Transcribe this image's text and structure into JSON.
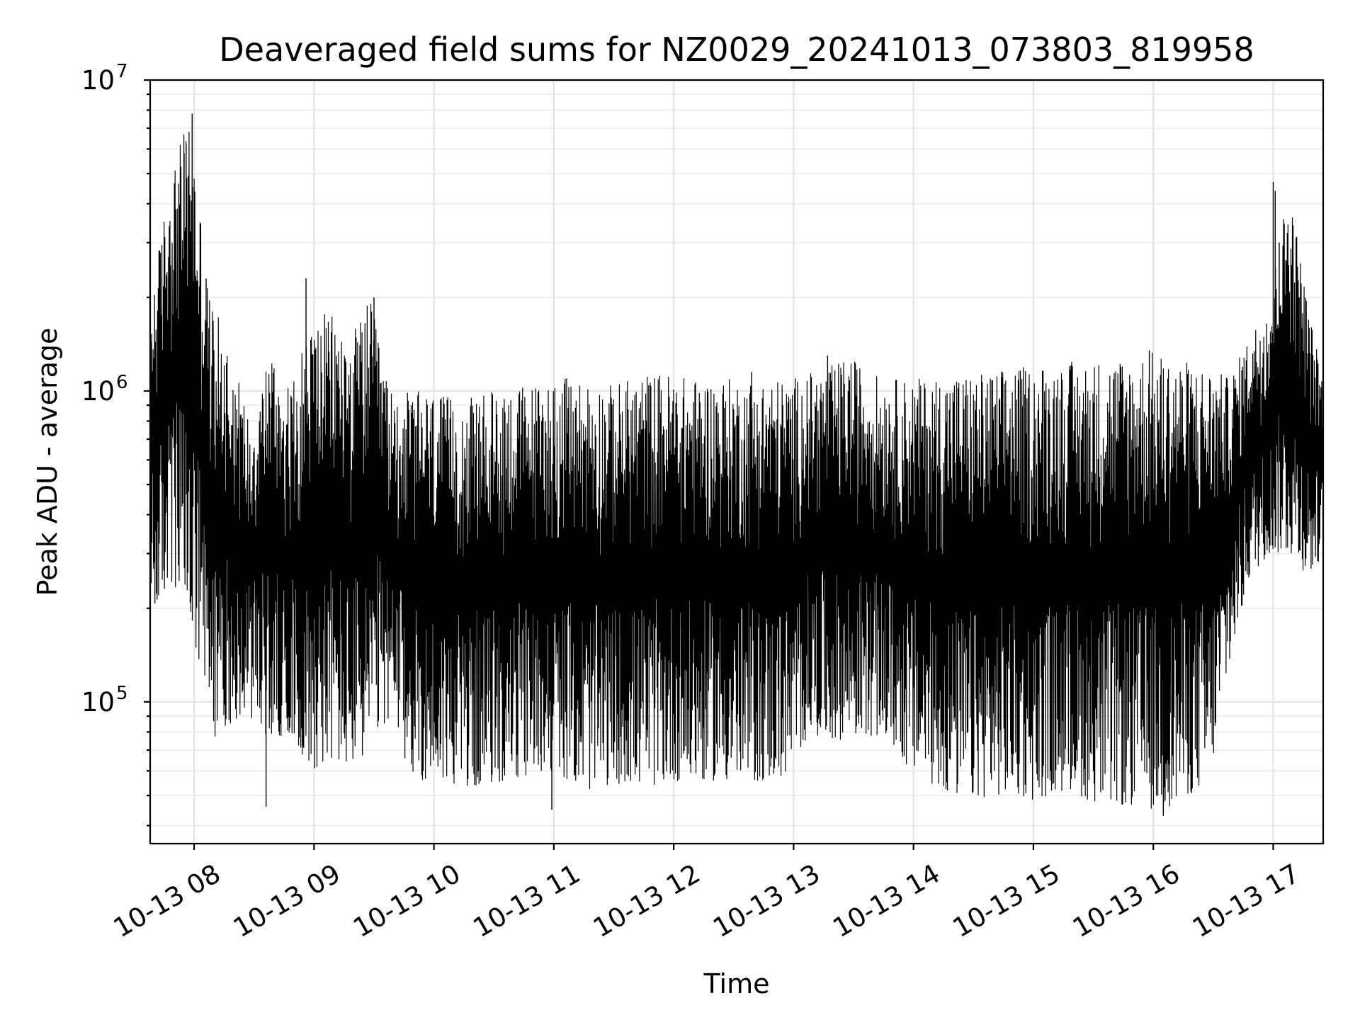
{
  "chart_data": {
    "type": "line",
    "title": "Deaveraged field sums for NZ0029_20241013_073803_819958",
    "xlabel": "Time",
    "ylabel": "Peak ADU - average",
    "yscale": "log",
    "ylim": [
      35000,
      10000000
    ],
    "xlim": [
      "2024-10-13 07:38",
      "2024-10-13 17:25"
    ],
    "grid": true,
    "line_color": "#000000",
    "x_tick_labels": [
      "10-13 08",
      "10-13 09",
      "10-13 10",
      "10-13 11",
      "10-13 12",
      "10-13 13",
      "10-13 14",
      "10-13 15",
      "10-13 16",
      "10-13 17"
    ],
    "x_tick_times": [
      "2024-10-13 08:00",
      "2024-10-13 09:00",
      "2024-10-13 10:00",
      "2024-10-13 11:00",
      "2024-10-13 12:00",
      "2024-10-13 13:00",
      "2024-10-13 14:00",
      "2024-10-13 15:00",
      "2024-10-13 16:00",
      "2024-10-13 17:00"
    ],
    "y_ticks": [
      {
        "value": 100000,
        "base": "10",
        "exp": "5"
      },
      {
        "value": 1000000,
        "base": "10",
        "exp": "6"
      },
      {
        "value": 10000000,
        "base": "10",
        "exp": "7"
      }
    ],
    "series": [
      {
        "envelope": {
          "time": [
            "2024-10-13 07:38",
            "2024-10-13 07:48",
            "2024-10-13 07:58",
            "2024-10-13 08:08",
            "2024-10-13 08:18",
            "2024-10-13 08:28",
            "2024-10-13 08:38",
            "2024-10-13 08:48",
            "2024-10-13 08:58",
            "2024-10-13 09:08",
            "2024-10-13 09:18",
            "2024-10-13 09:28",
            "2024-10-13 09:38",
            "2024-10-13 09:48",
            "2024-10-13 09:58",
            "2024-10-13 10:08",
            "2024-10-13 10:18",
            "2024-10-13 10:28",
            "2024-10-13 10:38",
            "2024-10-13 10:48",
            "2024-10-13 10:58",
            "2024-10-13 11:08",
            "2024-10-13 11:18",
            "2024-10-13 11:28",
            "2024-10-13 11:38",
            "2024-10-13 11:48",
            "2024-10-13 11:58",
            "2024-10-13 12:08",
            "2024-10-13 12:18",
            "2024-10-13 12:28",
            "2024-10-13 12:38",
            "2024-10-13 12:48",
            "2024-10-13 12:58",
            "2024-10-13 13:08",
            "2024-10-13 13:18",
            "2024-10-13 13:28",
            "2024-10-13 13:38",
            "2024-10-13 13:48",
            "2024-10-13 13:58",
            "2024-10-13 14:08",
            "2024-10-13 14:18",
            "2024-10-13 14:28",
            "2024-10-13 14:38",
            "2024-10-13 14:48",
            "2024-10-13 14:58",
            "2024-10-13 15:08",
            "2024-10-13 15:18",
            "2024-10-13 15:28",
            "2024-10-13 15:38",
            "2024-10-13 15:48",
            "2024-10-13 15:58",
            "2024-10-13 16:08",
            "2024-10-13 16:18",
            "2024-10-13 16:28",
            "2024-10-13 16:38",
            "2024-10-13 16:48",
            "2024-10-13 16:58",
            "2024-10-13 17:08",
            "2024-10-13 17:18",
            "2024-10-13 17:25"
          ],
          "low": [
            180000,
            240000,
            170000,
            75000,
            85000,
            90000,
            75000,
            80000,
            60000,
            65000,
            60000,
            70000,
            90000,
            58000,
            55000,
            55000,
            53000,
            55000,
            55000,
            58000,
            60000,
            56000,
            52000,
            54000,
            55000,
            53000,
            56000,
            55000,
            56000,
            55000,
            55000,
            56000,
            58000,
            80000,
            75000,
            76000,
            78000,
            75000,
            60000,
            55000,
            50000,
            48000,
            50000,
            50000,
            48000,
            50000,
            52000,
            48000,
            47000,
            46000,
            45000,
            46000,
            50000,
            55000,
            130000,
            250000,
            300000,
            300000,
            250000,
            300000
          ],
          "high": [
            1900000,
            5000000,
            7800000,
            2000000,
            1400000,
            800000,
            1400000,
            1000000,
            1700000,
            1800000,
            1500000,
            2000000,
            1000000,
            1000000,
            1000000,
            950000,
            950000,
            1000000,
            1050000,
            1050000,
            1100000,
            1100000,
            1100000,
            1050000,
            1100000,
            1150000,
            1150000,
            1100000,
            1100000,
            1100000,
            1100000,
            1100000,
            1100000,
            1150000,
            1200000,
            1300000,
            1150000,
            1100000,
            1100000,
            1100000,
            1150000,
            1150000,
            1150000,
            1200000,
            1200000,
            1250000,
            1250000,
            1250000,
            1300000,
            1300000,
            1350000,
            1300000,
            1250000,
            1200000,
            1100000,
            1500000,
            2000000,
            4700000,
            1800000,
            1100000
          ]
        }
      }
    ],
    "spikes": [
      {
        "time": "2024-10-13 07:59",
        "value": 7800000
      },
      {
        "time": "2024-10-13 07:56",
        "value": 6200000
      },
      {
        "time": "2024-10-13 07:55",
        "value": 5800000
      },
      {
        "time": "2024-10-13 08:06",
        "value": 2300000
      },
      {
        "time": "2024-10-13 08:56",
        "value": 2300000
      },
      {
        "time": "2024-10-13 09:30",
        "value": 2000000
      },
      {
        "time": "2024-10-13 12:39",
        "value": 1150000
      },
      {
        "time": "2024-10-13 13:17",
        "value": 1300000
      },
      {
        "time": "2024-10-13 15:58",
        "value": 1350000
      },
      {
        "time": "2024-10-13 17:00",
        "value": 4700000
      },
      {
        "time": "2024-10-13 17:01",
        "value": 4400000
      },
      {
        "time": "2024-10-13 17:03",
        "value": 3000000
      },
      {
        "time": "2024-10-13 17:13",
        "value": 2000000
      },
      {
        "time": "2024-10-13 08:36",
        "value": 46000
      },
      {
        "time": "2024-10-13 10:59",
        "value": 45000
      },
      {
        "time": "2024-10-13 16:05",
        "value": 43000
      }
    ]
  }
}
